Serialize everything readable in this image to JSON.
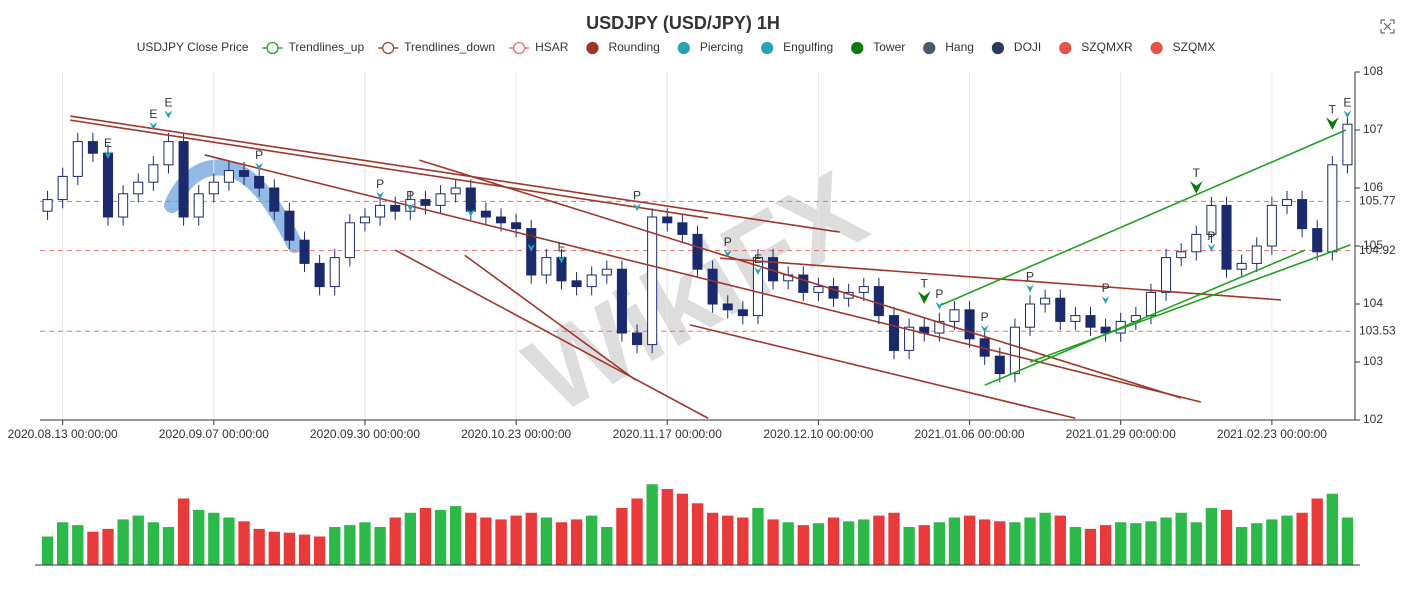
{
  "chart_data": {
    "type": "candlestick",
    "title": "USDJPY (USD/JPY) 1H",
    "watermark": "WikiFX",
    "legend": [
      {
        "name": "USDJPY Close Price",
        "color": "#333333",
        "style": "none"
      },
      {
        "name": "Trendlines_up",
        "color": "#2ca02c",
        "style": "hollow"
      },
      {
        "name": "Trendlines_down",
        "color": "#a0453a",
        "style": "hollow"
      },
      {
        "name": "HSAR",
        "color": "#e87070",
        "style": "hollow"
      },
      {
        "name": "Rounding",
        "color": "#a0352b",
        "style": "filled"
      },
      {
        "name": "Piercing",
        "color": "#2aa4b4",
        "style": "filled"
      },
      {
        "name": "Engulfing",
        "color": "#2aa4b4",
        "style": "filled"
      },
      {
        "name": "Tower",
        "color": "#0b7a0b",
        "style": "filled"
      },
      {
        "name": "Hang",
        "color": "#4a5a6a",
        "style": "filled"
      },
      {
        "name": "DOJI",
        "color": "#2a3a5a",
        "style": "filled"
      },
      {
        "name": "SZQMXR",
        "color": "#e5534b",
        "style": "filled"
      },
      {
        "name": "SZQMX",
        "color": "#e5534b",
        "style": "filled"
      }
    ],
    "categories": [
      null,
      "2020.08.13 00:00:00",
      null,
      null,
      null,
      null,
      null,
      null,
      null,
      null,
      null,
      "2020.09.07 00:00:00",
      null,
      null,
      null,
      null,
      null,
      null,
      null,
      null,
      null,
      "2020.09.30 00:00:00",
      null,
      null,
      null,
      null,
      null,
      null,
      null,
      null,
      null,
      "2020.10.23 00:00:00",
      null,
      null,
      null,
      null,
      null,
      null,
      null,
      null,
      null,
      "2020.11.17 00:00:00",
      null,
      null,
      null,
      null,
      null,
      null,
      null,
      null,
      null,
      "2020.12.10 00:00:00",
      null,
      null,
      null,
      null,
      null,
      null,
      null,
      null,
      null,
      "2021.01.06 00:00:00",
      null,
      null,
      null,
      null,
      null,
      null,
      null,
      null,
      null,
      "2021.01.29 00:00:00",
      null,
      null,
      null,
      null,
      null,
      null,
      null,
      null,
      null,
      "2021.02.23 00:00:00",
      null,
      null,
      null,
      null,
      null
    ],
    "open": [
      105.6,
      105.8,
      106.2,
      106.8,
      106.6,
      105.5,
      105.9,
      106.1,
      106.4,
      106.8,
      105.5,
      105.9,
      106.1,
      106.3,
      106.2,
      106.0,
      105.6,
      105.1,
      104.7,
      104.3,
      104.8,
      105.4,
      105.5,
      105.7,
      105.6,
      105.8,
      105.7,
      105.9,
      106.0,
      105.6,
      105.5,
      105.4,
      105.3,
      104.5,
      104.8,
      104.4,
      104.3,
      104.5,
      104.6,
      103.5,
      103.3,
      105.5,
      105.4,
      105.2,
      104.6,
      104.0,
      103.9,
      103.8,
      104.8,
      104.4,
      104.5,
      104.2,
      104.3,
      104.1,
      104.2,
      104.3,
      103.8,
      103.2,
      103.6,
      103.5,
      103.7,
      103.9,
      103.4,
      103.1,
      102.8,
      103.6,
      104.0,
      104.1,
      103.7,
      103.8,
      103.6,
      103.5,
      103.7,
      103.8,
      104.2,
      104.8,
      104.9,
      105.2,
      105.7,
      104.6,
      104.7,
      105.0,
      105.7,
      105.8,
      105.3,
      104.9,
      106.4
    ],
    "high": [
      105.95,
      106.35,
      106.95,
      106.95,
      106.75,
      106.05,
      106.25,
      106.55,
      106.95,
      106.95,
      106.05,
      106.25,
      106.45,
      106.45,
      106.35,
      106.15,
      105.75,
      105.25,
      104.85,
      104.95,
      105.55,
      105.65,
      105.85,
      105.85,
      105.95,
      105.95,
      106.05,
      106.15,
      106.15,
      105.75,
      105.65,
      105.55,
      105.45,
      104.95,
      104.95,
      104.55,
      104.65,
      104.75,
      104.75,
      103.65,
      105.65,
      105.65,
      105.55,
      105.35,
      104.75,
      104.15,
      104.05,
      104.95,
      104.95,
      104.65,
      104.65,
      104.45,
      104.45,
      104.35,
      104.45,
      104.45,
      103.95,
      103.75,
      103.75,
      103.85,
      104.05,
      104.05,
      103.55,
      103.25,
      103.75,
      104.15,
      104.25,
      104.25,
      103.95,
      103.95,
      103.75,
      103.85,
      103.95,
      104.35,
      104.95,
      105.05,
      105.35,
      105.85,
      105.85,
      104.85,
      105.15,
      105.85,
      105.95,
      105.95,
      105.45,
      106.55,
      107.25
    ],
    "low": [
      105.45,
      105.65,
      106.05,
      106.45,
      105.35,
      105.35,
      105.75,
      105.95,
      106.25,
      105.35,
      105.35,
      105.75,
      105.95,
      106.05,
      105.85,
      105.45,
      104.95,
      104.55,
      104.15,
      104.15,
      104.65,
      105.25,
      105.35,
      105.45,
      105.45,
      105.55,
      105.55,
      105.75,
      105.45,
      105.35,
      105.25,
      105.15,
      104.35,
      104.35,
      104.25,
      104.15,
      104.15,
      104.35,
      103.35,
      103.15,
      103.15,
      105.25,
      105.05,
      104.45,
      103.85,
      103.75,
      103.65,
      103.65,
      104.25,
      104.25,
      104.05,
      104.05,
      103.95,
      103.95,
      104.05,
      103.65,
      103.05,
      103.05,
      103.35,
      103.35,
      103.55,
      103.25,
      102.95,
      102.65,
      102.65,
      103.45,
      103.85,
      103.55,
      103.55,
      103.45,
      103.35,
      103.35,
      103.55,
      103.65,
      104.05,
      104.65,
      104.75,
      105.05,
      104.45,
      104.45,
      104.55,
      104.85,
      105.55,
      105.15,
      104.75,
      104.75,
      106.25
    ],
    "close": [
      105.8,
      106.2,
      106.8,
      106.6,
      105.5,
      105.9,
      106.1,
      106.4,
      106.8,
      105.5,
      105.9,
      106.1,
      106.3,
      106.2,
      106.0,
      105.6,
      105.1,
      104.7,
      104.3,
      104.8,
      105.4,
      105.5,
      105.7,
      105.6,
      105.8,
      105.7,
      105.9,
      106.0,
      105.6,
      105.5,
      105.4,
      105.3,
      104.5,
      104.8,
      104.4,
      104.3,
      104.5,
      104.6,
      103.5,
      103.3,
      105.5,
      105.4,
      105.2,
      104.6,
      104.0,
      103.9,
      103.8,
      104.8,
      104.4,
      104.5,
      104.2,
      104.3,
      104.1,
      104.2,
      104.3,
      103.8,
      103.2,
      103.6,
      103.5,
      103.7,
      103.9,
      103.4,
      103.1,
      102.8,
      103.6,
      104.0,
      104.1,
      103.7,
      103.8,
      103.6,
      103.5,
      103.7,
      103.8,
      104.2,
      104.8,
      104.9,
      105.2,
      105.7,
      104.6,
      104.7,
      105.0,
      105.7,
      105.8,
      105.3,
      104.9,
      106.4,
      107.1
    ],
    "volume": [
      30,
      45,
      42,
      35,
      38,
      48,
      52,
      45,
      40,
      70,
      58,
      55,
      50,
      46,
      38,
      35,
      34,
      32,
      30,
      40,
      42,
      45,
      40,
      50,
      55,
      60,
      58,
      62,
      55,
      50,
      48,
      52,
      55,
      50,
      45,
      48,
      52,
      40,
      60,
      70,
      85,
      80,
      75,
      65,
      55,
      52,
      50,
      60,
      48,
      45,
      42,
      44,
      50,
      46,
      48,
      52,
      55,
      40,
      42,
      45,
      50,
      52,
      48,
      46,
      45,
      50,
      55,
      52,
      40,
      38,
      42,
      45,
      44,
      46,
      50,
      55,
      45,
      60,
      58,
      40,
      44,
      48,
      52,
      55,
      70,
      75,
      50
    ],
    "volume_ylim": [
      0,
      100
    ],
    "up_color": "#ffffff",
    "down_color": "#1a2a6c",
    "candle_border": "#1a2a6c",
    "volume_up_color": "#2db84a",
    "volume_down_color": "#e83a3a",
    "ylim": [
      102,
      108
    ],
    "yticks": [
      102,
      103,
      104,
      105,
      106,
      107,
      108
    ],
    "xgrid": true,
    "hlines": [
      {
        "value": 103.53,
        "color": "#e87070"
      },
      {
        "value": 104.92,
        "color": "#e87070"
      },
      {
        "value": 105.77,
        "color": "#e87070"
      }
    ],
    "trendlines": [
      {
        "from": [
          1.5,
          107.24
        ],
        "to": [
          52.4,
          105.24
        ],
        "color": "#a0352b"
      },
      {
        "from": [
          1.5,
          107.17
        ],
        "to": [
          43.7,
          105.48
        ],
        "color": "#a0352b"
      },
      {
        "from": [
          10.4,
          106.57
        ],
        "to": [
          76.3,
          102.31
        ],
        "color": "#a0352b"
      },
      {
        "from": [
          24.6,
          106.48
        ],
        "to": [
          75,
          102.38
        ],
        "color": "#a0352b"
      },
      {
        "from": [
          23,
          104.93
        ],
        "to": [
          43.7,
          102.03
        ],
        "color": "#a0352b"
      },
      {
        "from": [
          27.6,
          104.84
        ],
        "to": [
          38.9,
          102.69
        ],
        "color": "#a0352b"
      },
      {
        "from": [
          42.5,
          103.64
        ],
        "to": [
          68,
          102.03
        ],
        "color": "#a0352b"
      },
      {
        "from": [
          44.5,
          104.79
        ],
        "to": [
          81.6,
          104.07
        ],
        "color": "#a0352b"
      },
      {
        "from": [
          59.1,
          103.98
        ],
        "to": [
          85.9,
          107.0
        ],
        "color": "#22a022"
      },
      {
        "from": [
          62,
          102.6
        ],
        "to": [
          83.2,
          104.93
        ],
        "color": "#22a022"
      },
      {
        "from": [
          65,
          103.0
        ],
        "to": [
          86.2,
          105.02
        ],
        "color": "#22a022"
      }
    ],
    "markers": [
      {
        "label": "E",
        "index": 4,
        "value": 106.5,
        "color": "#2aa4b4"
      },
      {
        "label": "E",
        "index": 7,
        "value": 107.0,
        "color": "#2aa4b4"
      },
      {
        "label": "E",
        "index": 8,
        "value": 107.2,
        "color": "#2aa4b4"
      },
      {
        "label": "P",
        "index": 14,
        "value": 106.3,
        "color": "#2aa4b4"
      },
      {
        "label": "P",
        "index": 22,
        "value": 105.8,
        "color": "#2aa4b4"
      },
      {
        "label": "P",
        "index": 24,
        "value": 105.6,
        "color": "#2aa4b4"
      },
      {
        "label": "P",
        "index": 28,
        "value": 105.5,
        "color": "#2aa4b4"
      },
      {
        "label": "P",
        "index": 32,
        "value": 104.9,
        "color": "#2aa4b4"
      },
      {
        "label": "E",
        "index": 34,
        "value": 104.7,
        "color": "#2aa4b4"
      },
      {
        "label": "P",
        "index": 39,
        "value": 105.6,
        "color": "#2aa4b4"
      },
      {
        "label": "P",
        "index": 45,
        "value": 104.8,
        "color": "#2aa4b4"
      },
      {
        "label": "E",
        "index": 47,
        "value": 104.5,
        "color": "#2aa4b4"
      },
      {
        "label": "T",
        "index": 58,
        "value": 104.0,
        "color": "#0b7a0b"
      },
      {
        "label": "P",
        "index": 59,
        "value": 103.9,
        "color": "#2aa4b4"
      },
      {
        "label": "P",
        "index": 62,
        "value": 103.5,
        "color": "#2aa4b4"
      },
      {
        "label": "P",
        "index": 65,
        "value": 104.2,
        "color": "#2aa4b4"
      },
      {
        "label": "P",
        "index": 70,
        "value": 104.0,
        "color": "#2aa4b4"
      },
      {
        "label": "T",
        "index": 76,
        "value": 105.9,
        "color": "#0b7a0b"
      },
      {
        "label": "P",
        "index": 77,
        "value": 104.9,
        "color": "#2aa4b4"
      },
      {
        "label": "T",
        "index": 85,
        "value": 107.0,
        "color": "#0b7a0b"
      },
      {
        "label": "E",
        "index": 86,
        "value": 107.2,
        "color": "#2aa4b4"
      }
    ]
  }
}
